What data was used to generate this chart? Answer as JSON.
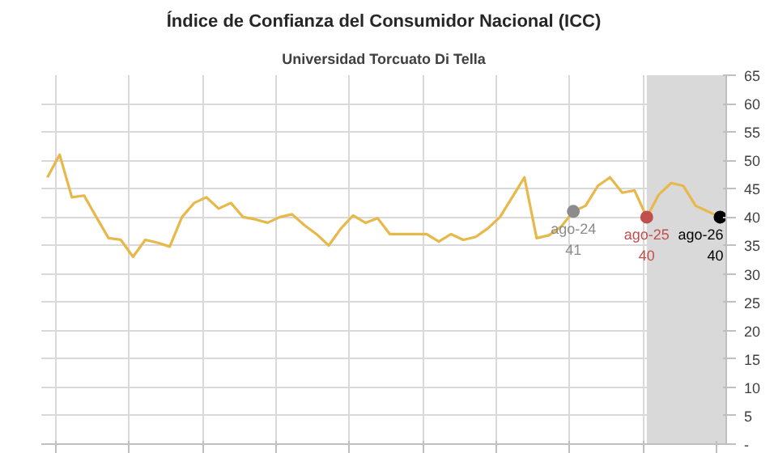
{
  "chart_data": {
    "type": "line",
    "title": "Índice de Confianza del Consumidor Nacional (ICC)",
    "subtitle": "Universidad Torcuato Di Tella",
    "categories": [
      null,
      null,
      null,
      null,
      null,
      null,
      null,
      null,
      null,
      null,
      null,
      null,
      null,
      null,
      null,
      null,
      null,
      null,
      null,
      null,
      null,
      null,
      null,
      null,
      null,
      null,
      null,
      null,
      null,
      null,
      null,
      null,
      null,
      null,
      null,
      null,
      null,
      null,
      null,
      null,
      null,
      null,
      null,
      null,
      null,
      null,
      null,
      null,
      null,
      null,
      null,
      null,
      null,
      null,
      null,
      null
    ],
    "series": [
      {
        "color": "#e8b84a",
        "values": [
          47,
          51,
          43.5,
          43.8,
          40,
          36.3,
          36,
          33,
          36,
          35.5,
          34.8,
          40,
          42.5,
          43.5,
          41.5,
          42.5,
          40,
          39.6,
          39,
          40,
          40.5,
          38.6,
          37,
          35,
          38,
          40.3,
          39,
          39.8,
          37,
          37,
          37,
          37,
          35.7,
          37,
          36,
          36.5,
          38,
          40,
          43.5,
          47,
          36.3,
          36.8,
          38.3,
          41,
          42,
          45.5,
          47,
          44.3,
          44.7,
          40,
          44,
          46,
          45.5,
          42,
          41,
          40
        ]
      },
      {
        "type": "scatter",
        "marker": "circle",
        "color": "#8c8c8c",
        "values": [
          null,
          null,
          null,
          null,
          null,
          null,
          null,
          null,
          null,
          null,
          null,
          null,
          null,
          null,
          null,
          null,
          null,
          null,
          null,
          null,
          null,
          null,
          null,
          null,
          null,
          null,
          null,
          null,
          null,
          null,
          null,
          null,
          null,
          null,
          null,
          null,
          null,
          null,
          null,
          null,
          null,
          null,
          null,
          41,
          null,
          null,
          null,
          null,
          null,
          null,
          null,
          null,
          null,
          null,
          null,
          null
        ],
        "value_labels": [
          null,
          null,
          null,
          null,
          null,
          null,
          null,
          null,
          null,
          null,
          null,
          null,
          null,
          null,
          null,
          null,
          null,
          null,
          null,
          null,
          null,
          null,
          null,
          null,
          null,
          null,
          null,
          null,
          null,
          null,
          null,
          null,
          null,
          null,
          null,
          null,
          null,
          null,
          null,
          null,
          null,
          null,
          null,
          "ago-24\n41",
          null,
          null,
          null,
          null,
          null,
          null,
          null,
          null,
          null,
          null,
          null,
          null
        ]
      },
      {
        "type": "scatter",
        "marker": "circle",
        "color": "#c0504d",
        "values": [
          null,
          null,
          null,
          null,
          null,
          null,
          null,
          null,
          null,
          null,
          null,
          null,
          null,
          null,
          null,
          null,
          null,
          null,
          null,
          null,
          null,
          null,
          null,
          null,
          null,
          null,
          null,
          null,
          null,
          null,
          null,
          null,
          null,
          null,
          null,
          null,
          null,
          null,
          null,
          null,
          null,
          null,
          null,
          null,
          null,
          null,
          null,
          null,
          null,
          40,
          null,
          null,
          null,
          null,
          null,
          null
        ],
        "value_labels": [
          null,
          null,
          null,
          null,
          null,
          null,
          null,
          null,
          null,
          null,
          null,
          null,
          null,
          null,
          null,
          null,
          null,
          null,
          null,
          null,
          null,
          null,
          null,
          null,
          null,
          null,
          null,
          null,
          null,
          null,
          null,
          null,
          null,
          null,
          null,
          null,
          null,
          null,
          null,
          null,
          null,
          null,
          null,
          null,
          null,
          null,
          null,
          null,
          null,
          "ago-25\n40",
          null,
          null,
          null,
          null,
          null,
          null
        ]
      },
      {
        "type": "scatter",
        "marker": "circle",
        "color": "#000000",
        "values": [
          null,
          null,
          null,
          null,
          null,
          null,
          null,
          null,
          null,
          null,
          null,
          null,
          null,
          null,
          null,
          null,
          null,
          null,
          null,
          null,
          null,
          null,
          null,
          null,
          null,
          null,
          null,
          null,
          null,
          null,
          null,
          null,
          null,
          null,
          null,
          null,
          null,
          null,
          null,
          null,
          null,
          null,
          null,
          null,
          null,
          null,
          null,
          null,
          null,
          null,
          null,
          null,
          null,
          null,
          null,
          40
        ],
        "value_labels": [
          null,
          null,
          null,
          null,
          null,
          null,
          null,
          null,
          null,
          null,
          null,
          null,
          null,
          null,
          null,
          null,
          null,
          null,
          null,
          null,
          null,
          null,
          null,
          null,
          null,
          null,
          null,
          null,
          null,
          null,
          null,
          null,
          null,
          null,
          null,
          null,
          null,
          null,
          null,
          null,
          null,
          null,
          null,
          null,
          null,
          null,
          null,
          null,
          null,
          null,
          null,
          null,
          null,
          null,
          null,
          "ago-26\n40"
        ]
      }
    ],
    "ylim": [
      0,
      65
    ],
    "yticks": [
      {
        "value": 0,
        "label": "-"
      },
      5,
      10,
      15,
      20,
      25,
      30,
      35,
      40,
      45,
      50,
      55,
      60,
      65
    ],
    "grid": true,
    "line_style": "solid"
  }
}
